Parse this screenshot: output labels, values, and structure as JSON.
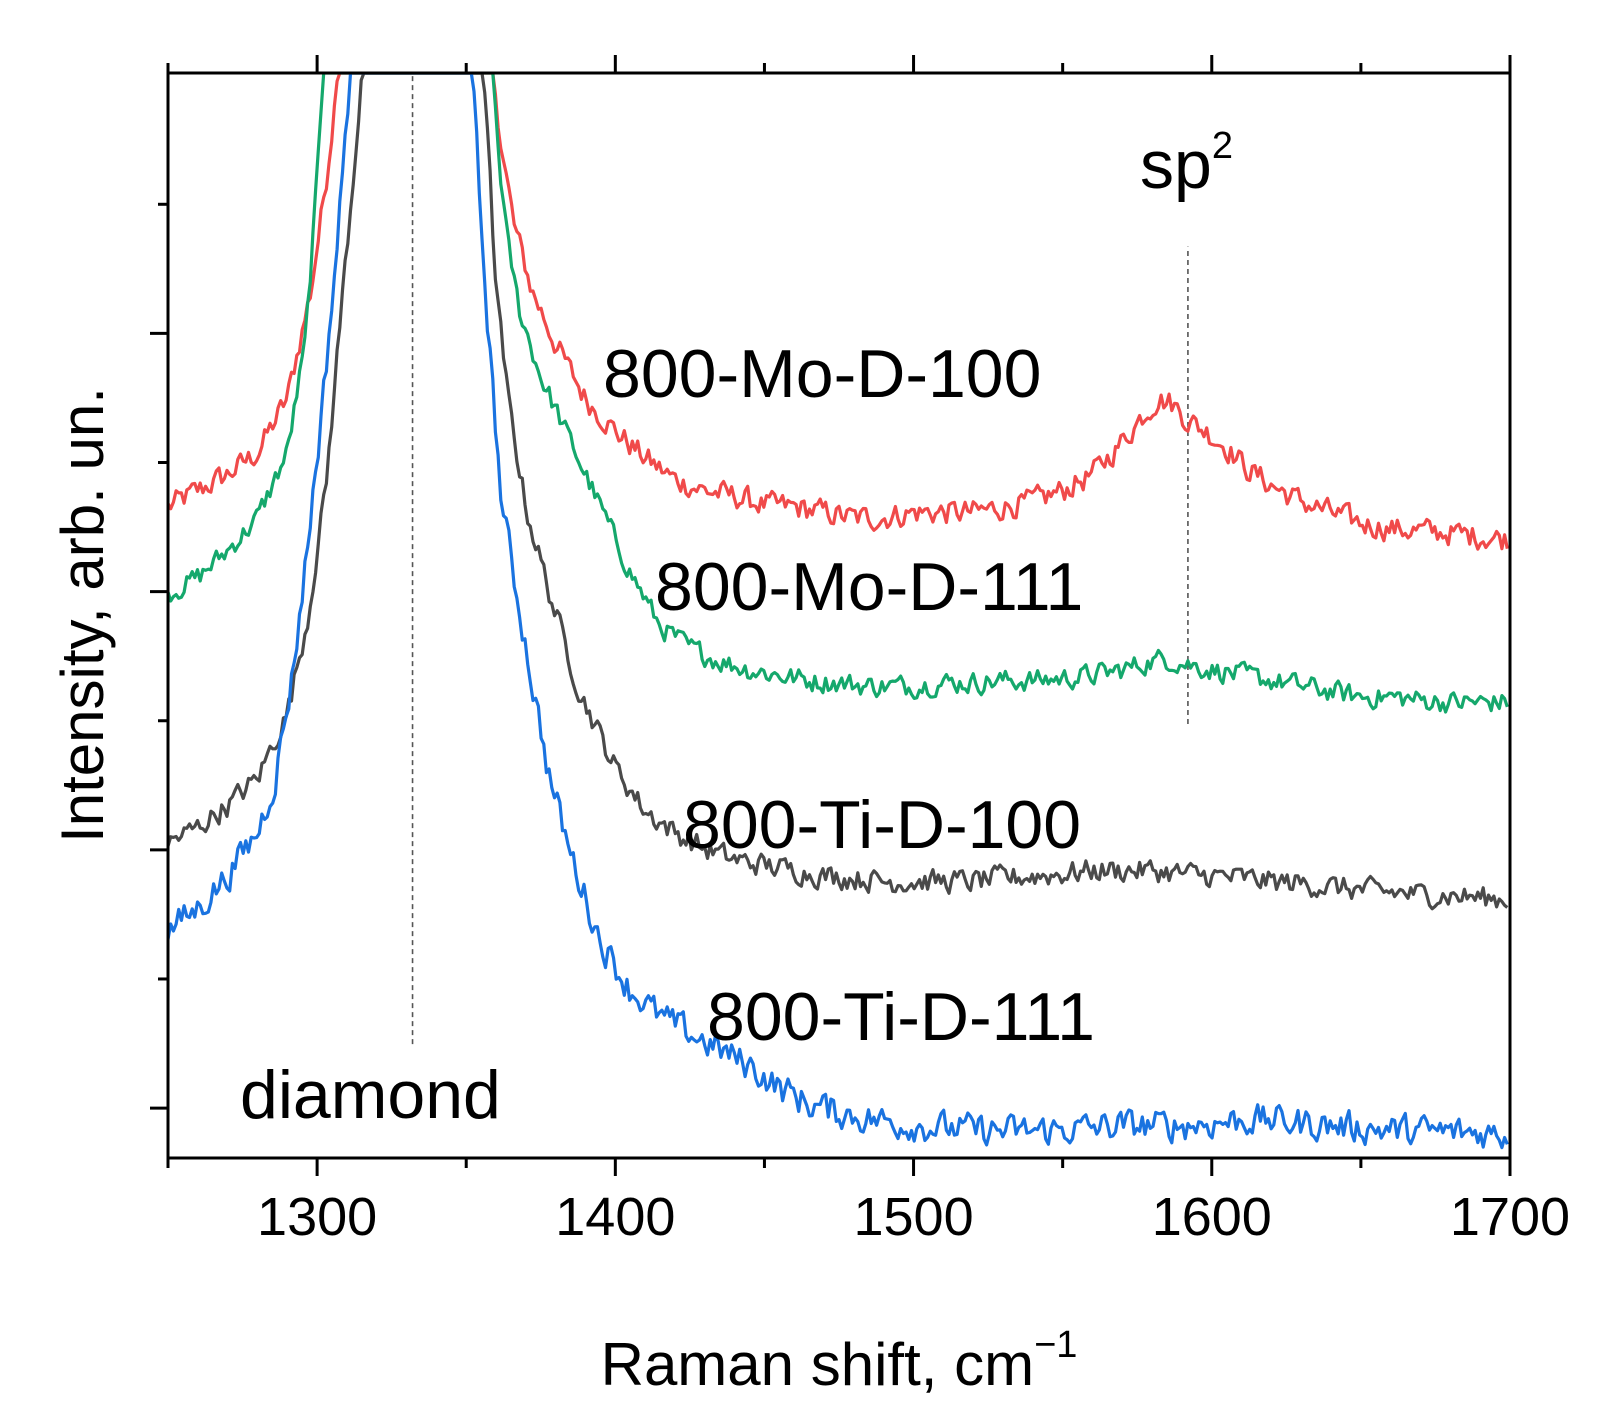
{
  "chart_data": {
    "type": "line",
    "title": "",
    "xlabel": "Raman shift, cm",
    "xlabel_sup": "−1",
    "ylabel": "Intensity, arb. un.",
    "xlim": [
      1250,
      1700
    ],
    "ylim": [
      0,
      100
    ],
    "x_ticks": [
      1300,
      1400,
      1500,
      1600,
      1700
    ],
    "x_tick_labels": [
      "1300",
      "1400",
      "1500",
      "1600",
      "1700"
    ],
    "y_ticks_major": [
      4.6,
      28.4,
      52.2,
      76.0
    ],
    "y_ticks_minor": [
      16.5,
      40.3,
      64.1,
      87.9
    ],
    "y_tick_labels_shown": false,
    "grid": false,
    "reference_lines": [
      {
        "name": "diamond",
        "x": 1332,
        "y_range": [
          10.5,
          100
        ],
        "label": "diamond",
        "style": "dashed"
      },
      {
        "name": "sp2",
        "x": 1592,
        "y_range": [
          40,
          84
        ],
        "label": "sp",
        "label_sup": "2",
        "style": "dashed"
      }
    ],
    "series": [
      {
        "name": "800-Mo-D-100",
        "color": "#f04a4a",
        "points": [
          [
            1250,
            60
          ],
          [
            1260,
            61.5
          ],
          [
            1270,
            63
          ],
          [
            1280,
            65
          ],
          [
            1290,
            70
          ],
          [
            1298,
            80
          ],
          [
            1303,
            90
          ],
          [
            1307,
            100
          ],
          [
            1359,
            100
          ],
          [
            1362,
            93
          ],
          [
            1366,
            86
          ],
          [
            1372,
            80
          ],
          [
            1380,
            75
          ],
          [
            1390,
            70
          ],
          [
            1400,
            67
          ],
          [
            1410,
            64.5
          ],
          [
            1420,
            62.5
          ],
          [
            1430,
            61.5
          ],
          [
            1440,
            61
          ],
          [
            1450,
            60.2
          ],
          [
            1460,
            60
          ],
          [
            1470,
            59.5
          ],
          [
            1480,
            59
          ],
          [
            1490,
            59
          ],
          [
            1500,
            59.5
          ],
          [
            1510,
            59.5
          ],
          [
            1520,
            59.5
          ],
          [
            1530,
            60
          ],
          [
            1540,
            60.5
          ],
          [
            1550,
            61.5
          ],
          [
            1560,
            63
          ],
          [
            1570,
            66
          ],
          [
            1577,
            68.5
          ],
          [
            1582,
            70
          ],
          [
            1587,
            69.5
          ],
          [
            1592,
            68
          ],
          [
            1598,
            67
          ],
          [
            1605,
            65.5
          ],
          [
            1612,
            63.5
          ],
          [
            1620,
            62
          ],
          [
            1630,
            60.5
          ],
          [
            1640,
            59.5
          ],
          [
            1650,
            58.5
          ],
          [
            1660,
            58
          ],
          [
            1670,
            57.8
          ],
          [
            1680,
            57.6
          ],
          [
            1690,
            57.3
          ],
          [
            1700,
            57
          ]
        ]
      },
      {
        "name": "800-Mo-D-111",
        "color": "#15a86c",
        "points": [
          [
            1250,
            52
          ],
          [
            1260,
            53.5
          ],
          [
            1270,
            56
          ],
          [
            1280,
            59
          ],
          [
            1290,
            65
          ],
          [
            1296,
            75
          ],
          [
            1300,
            90
          ],
          [
            1302,
            100
          ],
          [
            1359,
            100
          ],
          [
            1361,
            92
          ],
          [
            1364,
            84
          ],
          [
            1368,
            78
          ],
          [
            1375,
            72
          ],
          [
            1385,
            66
          ],
          [
            1395,
            60
          ],
          [
            1405,
            54
          ],
          [
            1415,
            49
          ],
          [
            1425,
            47
          ],
          [
            1435,
            45.8
          ],
          [
            1445,
            45
          ],
          [
            1455,
            44.5
          ],
          [
            1465,
            44
          ],
          [
            1475,
            43.8
          ],
          [
            1485,
            43.5
          ],
          [
            1500,
            43.5
          ],
          [
            1510,
            43.8
          ],
          [
            1520,
            43.8
          ],
          [
            1530,
            44
          ],
          [
            1540,
            44
          ],
          [
            1550,
            44.2
          ],
          [
            1560,
            44.5
          ],
          [
            1570,
            45
          ],
          [
            1580,
            45.8
          ],
          [
            1585,
            46
          ],
          [
            1592,
            45.5
          ],
          [
            1600,
            45
          ],
          [
            1610,
            44.5
          ],
          [
            1620,
            44
          ],
          [
            1630,
            43.5
          ],
          [
            1640,
            43
          ],
          [
            1650,
            42.5
          ],
          [
            1660,
            42.5
          ],
          [
            1670,
            42.2
          ],
          [
            1680,
            42
          ],
          [
            1690,
            42
          ],
          [
            1700,
            42
          ]
        ]
      },
      {
        "name": "800-Ti-D-100",
        "color": "#4a4a4a",
        "points": [
          [
            1250,
            29
          ],
          [
            1260,
            30.5
          ],
          [
            1270,
            32.5
          ],
          [
            1280,
            35
          ],
          [
            1290,
            41
          ],
          [
            1297,
            50
          ],
          [
            1303,
            62
          ],
          [
            1308,
            78
          ],
          [
            1312,
            90
          ],
          [
            1315,
            100
          ],
          [
            1356,
            100
          ],
          [
            1358,
            90
          ],
          [
            1360,
            80
          ],
          [
            1364,
            70
          ],
          [
            1370,
            60
          ],
          [
            1378,
            52
          ],
          [
            1388,
            43
          ],
          [
            1400,
            36
          ],
          [
            1410,
            32
          ],
          [
            1420,
            30
          ],
          [
            1430,
            28.5
          ],
          [
            1440,
            27.5
          ],
          [
            1450,
            27
          ],
          [
            1460,
            26.5
          ],
          [
            1470,
            26
          ],
          [
            1480,
            25.8
          ],
          [
            1490,
            25.5
          ],
          [
            1500,
            25.5
          ],
          [
            1510,
            25.5
          ],
          [
            1520,
            25.5
          ],
          [
            1530,
            25.8
          ],
          [
            1540,
            26
          ],
          [
            1550,
            26.2
          ],
          [
            1560,
            26.5
          ],
          [
            1570,
            26.5
          ],
          [
            1580,
            26.5
          ],
          [
            1590,
            26.2
          ],
          [
            1600,
            26
          ],
          [
            1610,
            25.8
          ],
          [
            1620,
            25.5
          ],
          [
            1630,
            25.3
          ],
          [
            1640,
            25
          ],
          [
            1650,
            24.7
          ],
          [
            1660,
            24.5
          ],
          [
            1670,
            24.3
          ],
          [
            1680,
            24.2
          ],
          [
            1690,
            24
          ],
          [
            1700,
            23.8
          ]
        ]
      },
      {
        "name": "800-Ti-D-111",
        "color": "#1a73e0",
        "points": [
          [
            1250,
            21
          ],
          [
            1260,
            23
          ],
          [
            1270,
            26
          ],
          [
            1280,
            30
          ],
          [
            1286,
            35
          ],
          [
            1292,
            45
          ],
          [
            1297,
            57
          ],
          [
            1302,
            70
          ],
          [
            1307,
            85
          ],
          [
            1311,
            100
          ],
          [
            1352,
            100
          ],
          [
            1355,
            86
          ],
          [
            1358,
            74
          ],
          [
            1362,
            60
          ],
          [
            1367,
            52
          ],
          [
            1372,
            44
          ],
          [
            1378,
            35
          ],
          [
            1385,
            28
          ],
          [
            1395,
            20
          ],
          [
            1405,
            15.5
          ],
          [
            1415,
            13
          ],
          [
            1425,
            11.5
          ],
          [
            1435,
            10
          ],
          [
            1445,
            8.5
          ],
          [
            1455,
            6.5
          ],
          [
            1465,
            5
          ],
          [
            1475,
            4.2
          ],
          [
            1485,
            3.6
          ],
          [
            1500,
            3
          ],
          [
            1510,
            2.8
          ],
          [
            1520,
            2.6
          ],
          [
            1530,
            2.5
          ],
          [
            1540,
            2.5
          ],
          [
            1550,
            2.6
          ],
          [
            1560,
            2.8
          ],
          [
            1570,
            3
          ],
          [
            1580,
            3
          ],
          [
            1590,
            3
          ],
          [
            1600,
            3.2
          ],
          [
            1610,
            3.5
          ],
          [
            1620,
            3.5
          ],
          [
            1630,
            3.2
          ],
          [
            1640,
            3
          ],
          [
            1650,
            2.8
          ],
          [
            1660,
            2.6
          ],
          [
            1670,
            2.5
          ],
          [
            1680,
            2.4
          ],
          [
            1690,
            2.3
          ],
          [
            1700,
            2.2
          ]
        ]
      }
    ],
    "annotations": [
      "800-Mo-D-100",
      "800-Mo-D-111",
      "800-Ti-D-100",
      "800-Ti-D-111",
      "diamond",
      "sp2"
    ]
  }
}
